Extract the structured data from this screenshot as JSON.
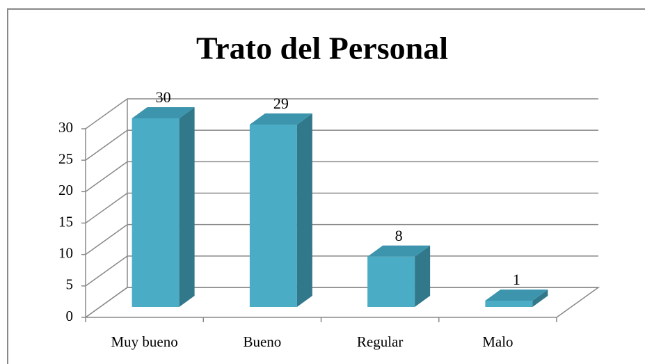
{
  "chart_data": {
    "type": "bar3d",
    "title": "Trato del Personal",
    "categories": [
      "Muy bueno",
      "Bueno",
      "Regular",
      "Malo"
    ],
    "values": [
      30,
      29,
      8,
      1
    ],
    "color": "#4bacc6",
    "ylim": [
      0,
      30
    ],
    "yticks": [
      0,
      5,
      10,
      15,
      20,
      25,
      30
    ],
    "grid": true
  }
}
